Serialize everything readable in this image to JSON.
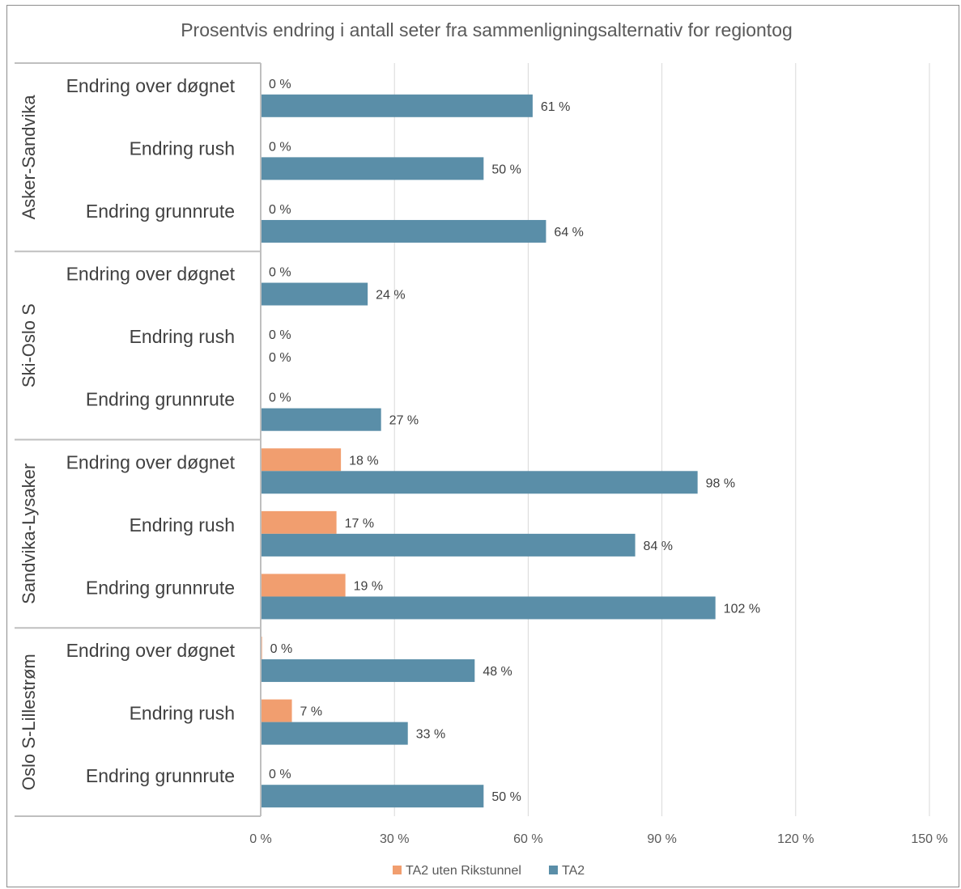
{
  "chart_data": {
    "type": "bar",
    "orientation": "horizontal",
    "title": "Prosentvis endring i antall seter fra sammenligningsalternativ for regiontog",
    "xlabel": "",
    "ylabel": "",
    "xlim": [
      0,
      150
    ],
    "x_ticks": [
      0,
      30,
      60,
      90,
      120,
      150
    ],
    "x_tick_labels": [
      "0 %",
      "30 %",
      "60 %",
      "90 %",
      "120 %",
      "150 %"
    ],
    "grid": true,
    "legend_position": "bottom",
    "groups": [
      {
        "name": "Asker-Sandvika",
        "categories": [
          "Endring over døgnet",
          "Endring rush",
          "Endring grunnrute"
        ],
        "values": {
          "ta2_uten": [
            0,
            0,
            0
          ],
          "ta2": [
            61,
            50,
            64
          ]
        }
      },
      {
        "name": "Ski-Oslo S",
        "categories": [
          "Endring over døgnet",
          "Endring rush",
          "Endring grunnrute"
        ],
        "values": {
          "ta2_uten": [
            0,
            0,
            0
          ],
          "ta2": [
            24,
            0,
            27
          ]
        }
      },
      {
        "name": "Sandvika-Lysaker",
        "categories": [
          "Endring over døgnet",
          "Endring rush",
          "Endring grunnrute"
        ],
        "values": {
          "ta2_uten": [
            18,
            17,
            19
          ],
          "ta2": [
            98,
            84,
            102
          ]
        }
      },
      {
        "name": "Oslo S-Lillestrøm",
        "categories": [
          "Endring over døgnet",
          "Endring rush",
          "Endring grunnrute"
        ],
        "values": {
          "ta2_uten": [
            0.3,
            7,
            0
          ],
          "ta2": [
            48,
            33,
            50
          ]
        }
      }
    ],
    "data_labels": {
      "ta2_uten": [
        [
          "0 %",
          "0 %",
          "0 %"
        ],
        [
          "0 %",
          "0 %",
          "0 %"
        ],
        [
          "18 %",
          "17 %",
          "19 %"
        ],
        [
          "0 %",
          "7 %",
          "0 %"
        ]
      ],
      "ta2": [
        [
          "61 %",
          "50 %",
          "64 %"
        ],
        [
          "24 %",
          "0 %",
          "27 %"
        ],
        [
          "98 %",
          "84 %",
          "102 %"
        ],
        [
          "48 %",
          "33 %",
          "50 %"
        ]
      ]
    },
    "series": [
      {
        "key": "ta2_uten",
        "name": "TA2 uten Rikstunnel",
        "color": "#F19E6F"
      },
      {
        "key": "ta2",
        "name": "TA2",
        "color": "#5A8EA8"
      }
    ]
  }
}
